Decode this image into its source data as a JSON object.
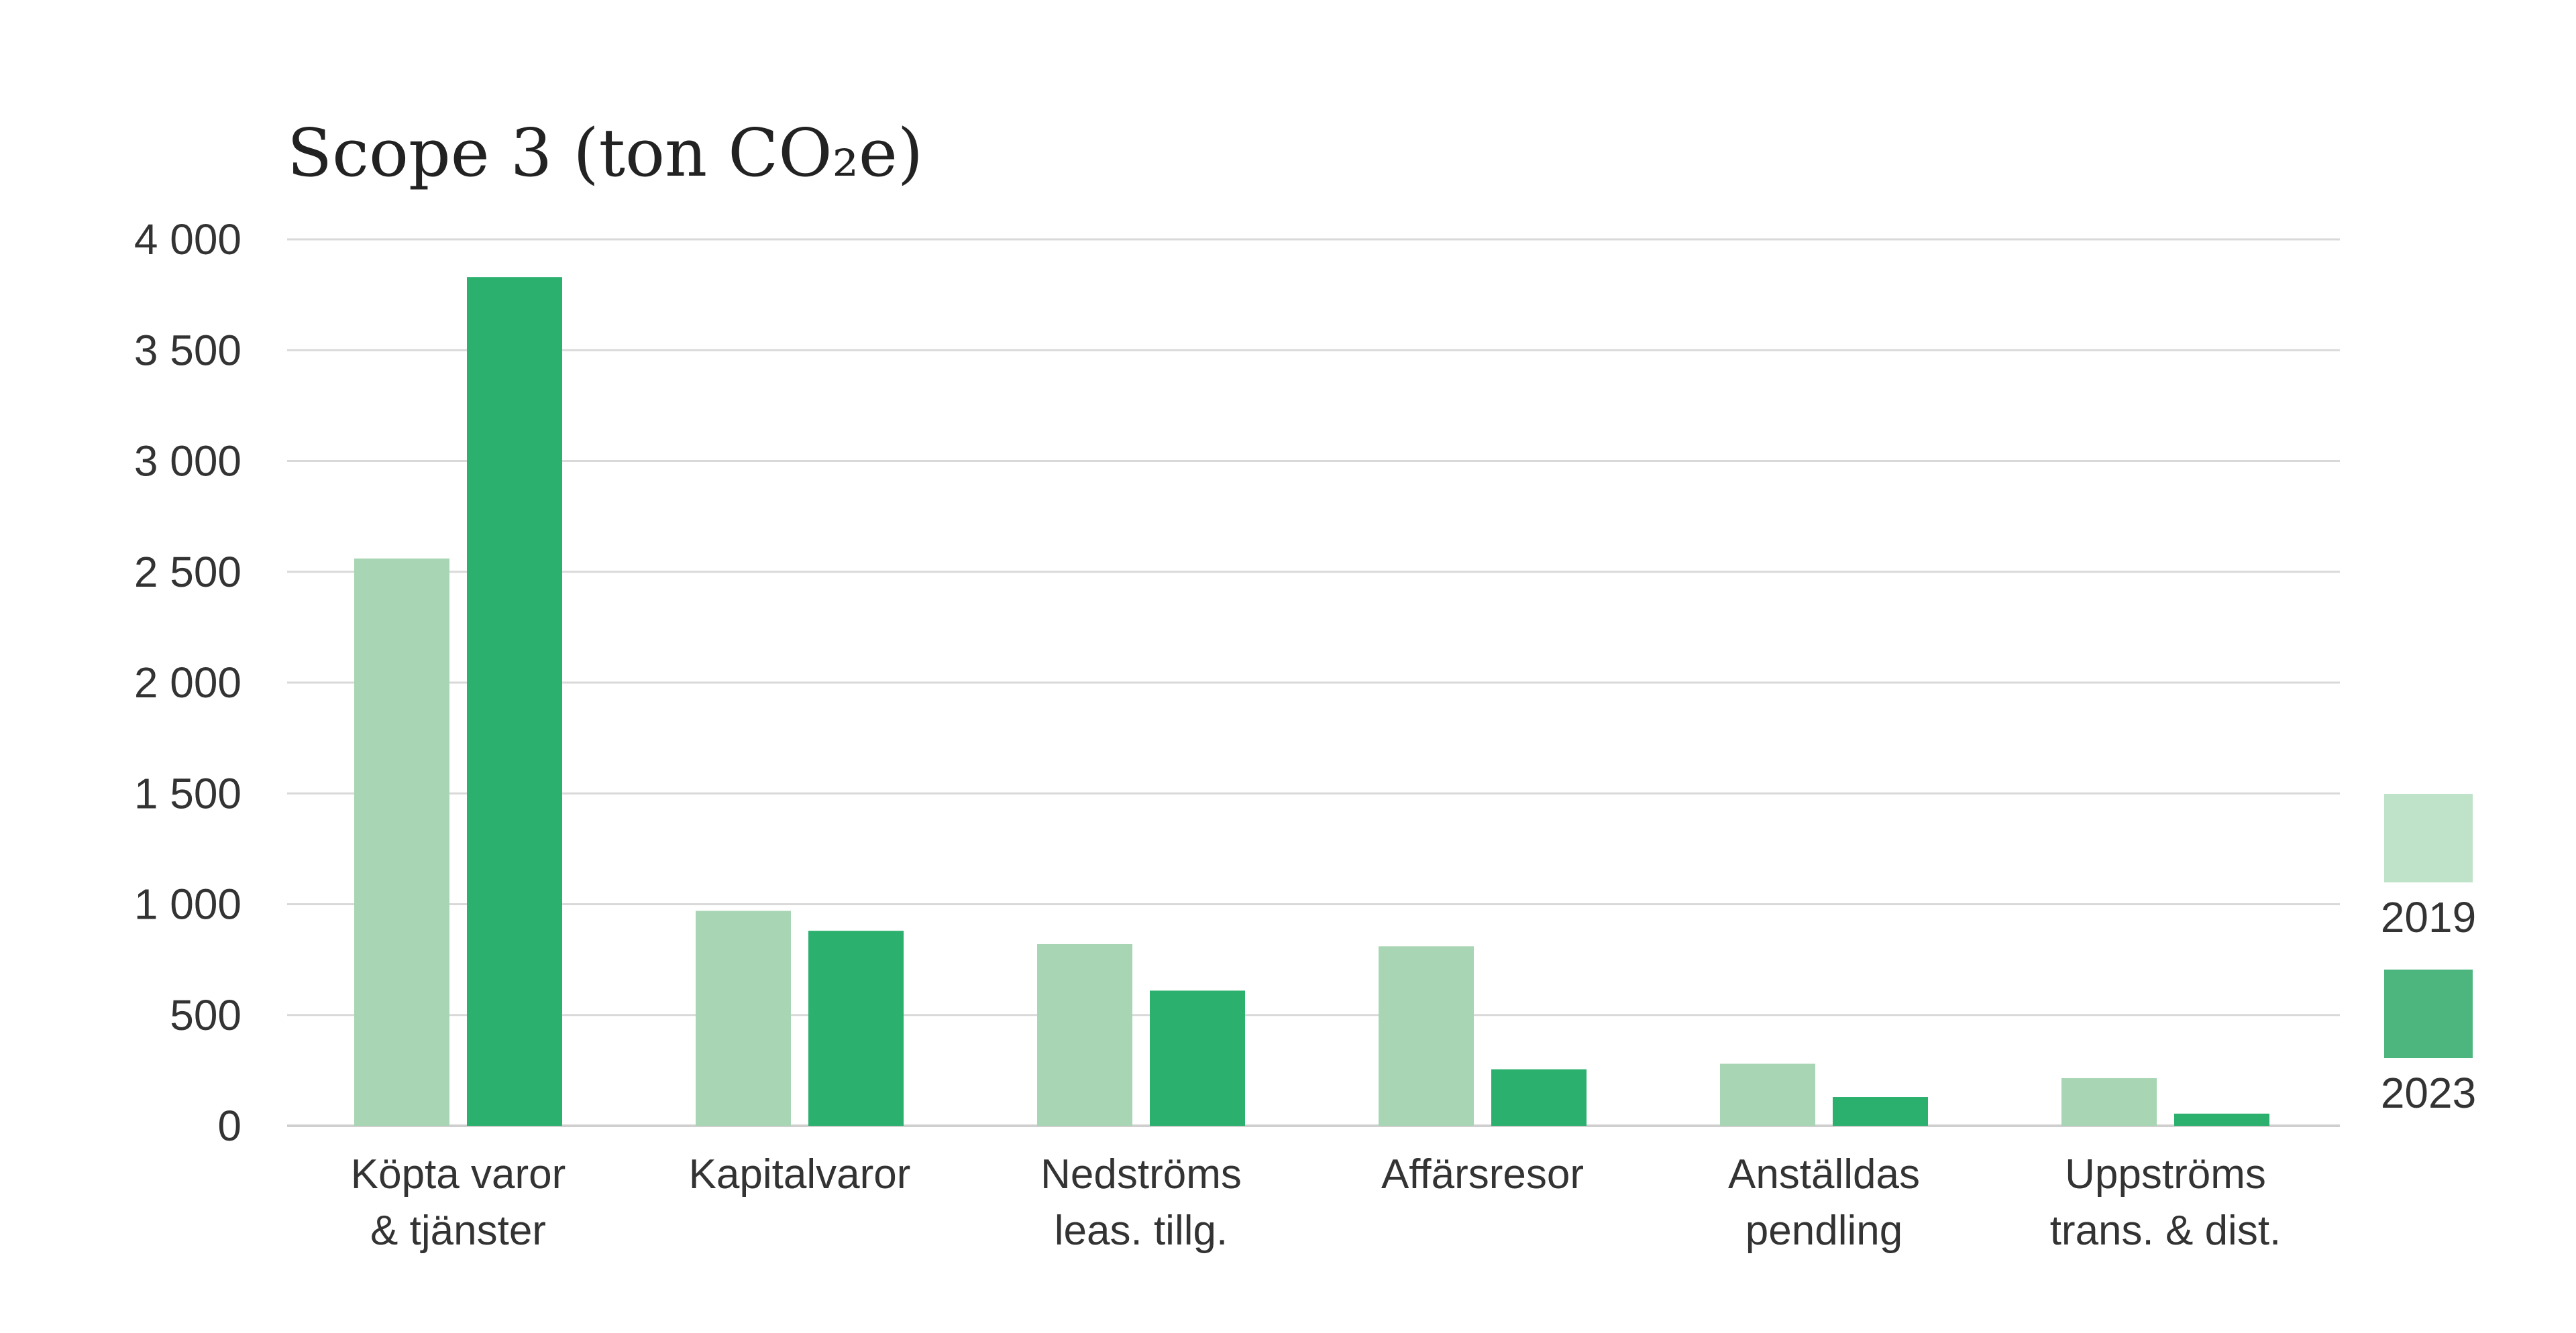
{
  "chart_data": {
    "type": "bar",
    "title": "Scope 3 (ton CO₂e)",
    "categories": [
      [
        "Köpta varor",
        "& tjänster"
      ],
      [
        "Kapitalvaror"
      ],
      [
        "Nedströms",
        "leas. tillg."
      ],
      [
        "Affärsresor"
      ],
      [
        "Anställdas",
        "pendling"
      ],
      [
        "Uppströms",
        "trans. & dist."
      ]
    ],
    "series": [
      {
        "name": "2019",
        "color": "#a8d5b3",
        "values": [
          2560,
          970,
          820,
          810,
          280,
          215
        ]
      },
      {
        "name": "2023",
        "color": "#2bb06e",
        "values": [
          3830,
          880,
          610,
          255,
          130,
          55
        ]
      }
    ],
    "yticks": [
      0,
      500,
      1000,
      1500,
      2000,
      2500,
      3000,
      3500,
      4000
    ],
    "ytick_labels": [
      "0",
      "500",
      "1 000",
      "1 500",
      "2 000",
      "2 500",
      "3 000",
      "3 500",
      "4 000"
    ],
    "ylim": [
      0,
      4000
    ],
    "grid": true,
    "legend_position": "right",
    "legend_colors": [
      "#bfe3c8",
      "#4db67e"
    ],
    "gridline_color": "#d9d9d9",
    "axis_color": "#cfcfcf"
  }
}
